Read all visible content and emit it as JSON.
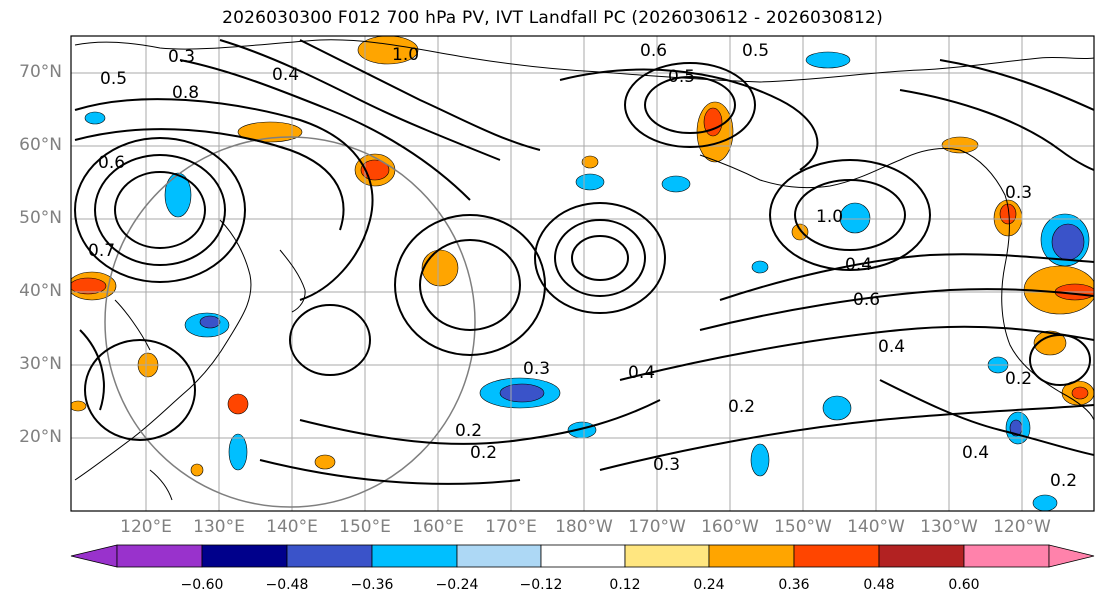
{
  "title": "2026030300 F012 700 hPa PV, IVT Landfall PC (2026030612 - 2026030812)",
  "lat_labels": [
    "70°N",
    "60°N",
    "50°N",
    "40°N",
    "30°N",
    "20°N"
  ],
  "lon_labels": [
    "120°E",
    "130°E",
    "140°E",
    "150°E",
    "160°E",
    "170°E",
    "180°W",
    "170°W",
    "160°W",
    "150°W",
    "140°W",
    "130°W",
    "120°W"
  ],
  "colorbar": {
    "ticks": [
      "−0.60",
      "−0.48",
      "−0.36",
      "−0.24",
      "−0.12",
      "0.12",
      "0.24",
      "0.36",
      "0.48",
      "0.60"
    ],
    "colors": [
      "#9932cc",
      "#00008b",
      "#3a53c9",
      "#00bfff",
      "#add8f5",
      "#ffffff",
      "#ffe680",
      "#ffa500",
      "#ff4500",
      "#b22222",
      "#ff82ab"
    ]
  },
  "contour_labels": [
    "0.3",
    "0.4",
    "0.5",
    "0.6",
    "0.7",
    "0.8",
    "1.0",
    "0.2",
    "0.3",
    "0.4",
    "0.5",
    "0.6",
    "1.0",
    "0.2",
    "0.4",
    "0.3",
    "0.2",
    "0.5",
    "0.6",
    "0.4",
    "0.2",
    "0.3",
    "0.4",
    "0.2"
  ],
  "colors": {
    "frame": "#000000",
    "grid": "#a8a8a8",
    "label": "#808080"
  }
}
